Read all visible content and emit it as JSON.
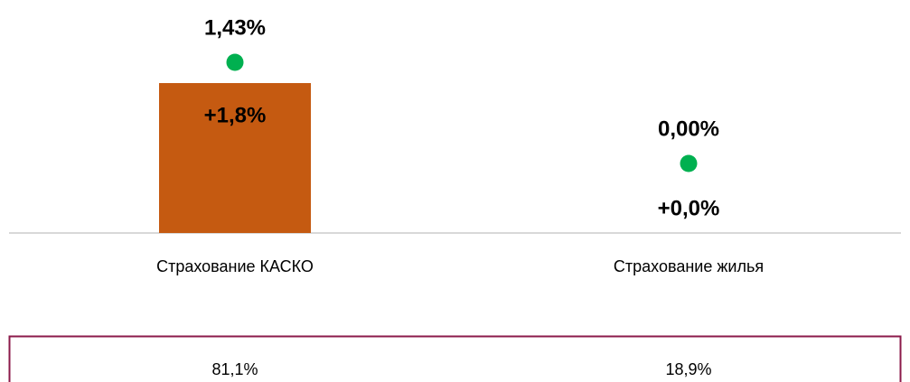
{
  "chart_data": {
    "type": "bar",
    "categories": [
      "Страхование КАСКО",
      "Страхование жилья"
    ],
    "values": [
      1.8,
      0.0
    ],
    "value_labels": [
      "+1,8%",
      "+0,0%"
    ],
    "color": "#c55a11",
    "dots": {
      "values": [
        1.43,
        0.0
      ],
      "value_labels": [
        "1,43%",
        "0,00%"
      ],
      "color": "#00b050"
    },
    "shares": [
      "81,1%",
      "18,9%"
    ]
  }
}
